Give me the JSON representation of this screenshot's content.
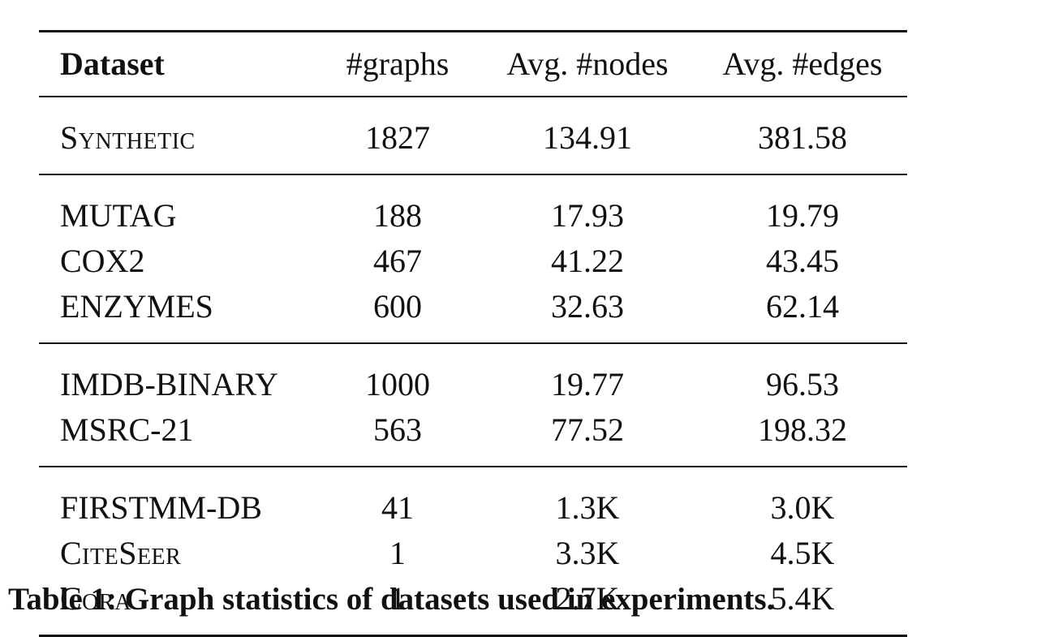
{
  "table": {
    "headers": [
      "Dataset",
      "#graphs",
      "Avg. #nodes",
      "Avg. #edges"
    ],
    "groups": [
      [
        {
          "dataset": "Synthetic",
          "smallcaps": true,
          "graphs": "1827",
          "nodes": "134.91",
          "edges": "381.58"
        }
      ],
      [
        {
          "dataset": "MUTAG",
          "smallcaps": false,
          "graphs": "188",
          "nodes": "17.93",
          "edges": "19.79"
        },
        {
          "dataset": "COX2",
          "smallcaps": false,
          "graphs": "467",
          "nodes": "41.22",
          "edges": "43.45"
        },
        {
          "dataset": "ENZYMES",
          "smallcaps": false,
          "graphs": "600",
          "nodes": "32.63",
          "edges": "62.14"
        }
      ],
      [
        {
          "dataset": "IMDB-BINARY",
          "smallcaps": false,
          "graphs": "1000",
          "nodes": "19.77",
          "edges": "96.53"
        },
        {
          "dataset": "MSRC-21",
          "smallcaps": false,
          "graphs": "563",
          "nodes": "77.52",
          "edges": "198.32"
        }
      ],
      [
        {
          "dataset": "FIRSTMM-DB",
          "smallcaps": false,
          "graphs": "41",
          "nodes": "1.3K",
          "edges": "3.0K"
        },
        {
          "dataset": "CiteSeer",
          "smallcaps": true,
          "graphs": "1",
          "nodes": "3.3K",
          "edges": "4.5K"
        },
        {
          "dataset": "Cora",
          "smallcaps": true,
          "graphs": "1",
          "nodes": "2.7K",
          "edges": "5.4K"
        }
      ]
    ]
  },
  "caption": "Table 1: Graph statistics of datasets used in experiments."
}
